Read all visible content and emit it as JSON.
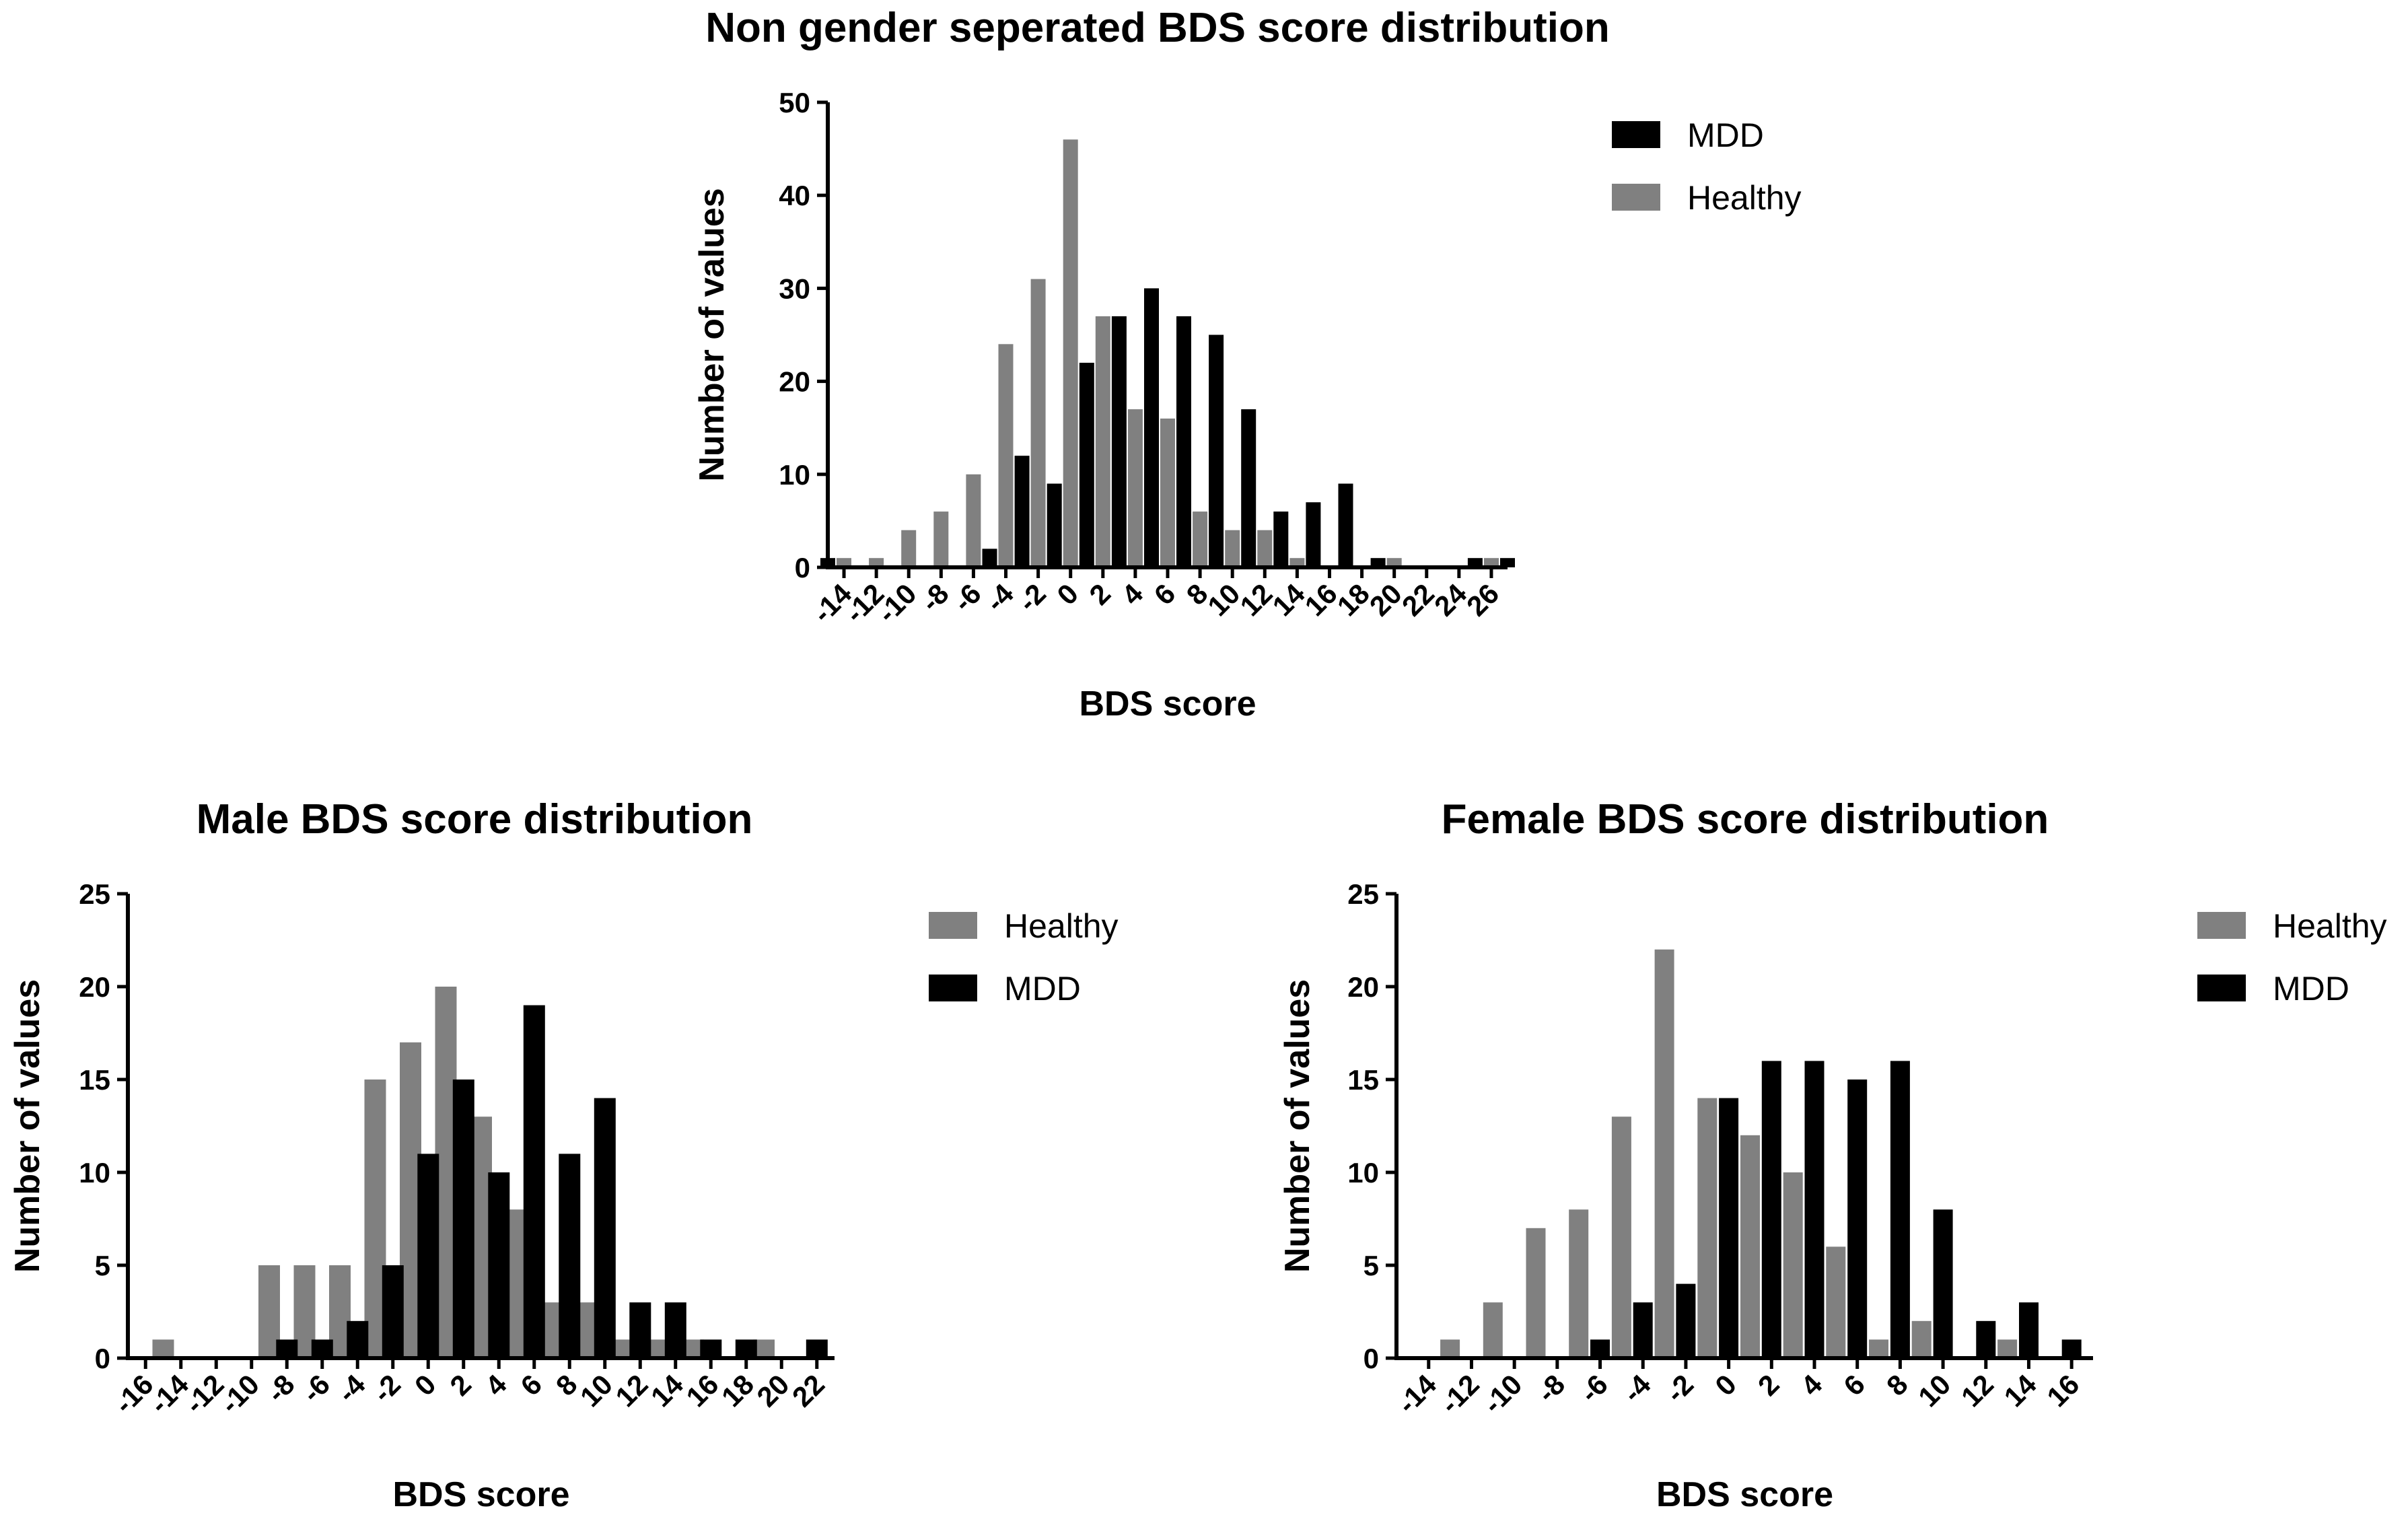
{
  "colors": {
    "mdd": "#000000",
    "healthy": "#808080",
    "axis": "#000000"
  },
  "chart_data": [
    {
      "type": "bar",
      "title": "Non gender seperated BDS score distribution",
      "xlabel": "BDS score",
      "ylabel": "Number of values",
      "ylim": [
        0,
        50
      ],
      "yticks": [
        0,
        10,
        20,
        30,
        40,
        50
      ],
      "xticks": [
        -14,
        -12,
        -10,
        -8,
        -6,
        -4,
        -2,
        0,
        2,
        4,
        6,
        8,
        10,
        12,
        14,
        16,
        18,
        20,
        22,
        24,
        26
      ],
      "legend_position": "top-right",
      "legend": [
        "MDD",
        "Healthy"
      ],
      "series": [
        {
          "name": "MDD",
          "x": [
            -15,
            -5,
            -3,
            -1,
            1,
            3,
            5,
            7,
            9,
            11,
            13,
            15,
            17,
            19,
            21,
            23,
            25,
            27
          ],
          "values": [
            1,
            2,
            12,
            9,
            22,
            27,
            30,
            27,
            25,
            17,
            6,
            7,
            9,
            1,
            0,
            0,
            1,
            1
          ]
        },
        {
          "name": "Healthy",
          "x": [
            -14,
            -12,
            -10,
            -8,
            -6,
            -4,
            -2,
            0,
            2,
            4,
            6,
            8,
            10,
            12,
            14,
            16,
            18,
            20,
            22,
            24,
            26
          ],
          "values": [
            1,
            1,
            4,
            6,
            10,
            24,
            31,
            46,
            27,
            17,
            16,
            6,
            4,
            4,
            1,
            0,
            0,
            1,
            0,
            0,
            1
          ]
        }
      ]
    },
    {
      "type": "bar",
      "title": "Male BDS score distribution",
      "xlabel": "BDS score",
      "ylabel": "Number of values",
      "ylim": [
        0,
        25
      ],
      "yticks": [
        0,
        5,
        10,
        15,
        20,
        25
      ],
      "xticks": [
        -16,
        -14,
        -12,
        -10,
        -8,
        -6,
        -4,
        -2,
        0,
        2,
        4,
        6,
        8,
        10,
        12,
        14,
        16,
        18,
        20,
        22
      ],
      "legend_position": "top-right",
      "legend": [
        "Healthy",
        "MDD"
      ],
      "series": [
        {
          "name": "Healthy",
          "x": [
            -15,
            -13,
            -11,
            -9,
            -7,
            -5,
            -3,
            -1,
            1,
            3,
            5,
            7,
            9,
            11,
            13,
            15,
            17,
            19,
            21
          ],
          "values": [
            1,
            0,
            0,
            5,
            5,
            5,
            15,
            17,
            20,
            13,
            8,
            3,
            3,
            1,
            1,
            1,
            0,
            1,
            0
          ]
        },
        {
          "name": "MDD",
          "x": [
            -8,
            -6,
            -4,
            -2,
            0,
            2,
            4,
            6,
            8,
            10,
            12,
            14,
            16,
            18,
            20,
            22
          ],
          "values": [
            1,
            1,
            2,
            5,
            11,
            15,
            10,
            19,
            11,
            14,
            3,
            3,
            1,
            1,
            0,
            1
          ]
        }
      ]
    },
    {
      "type": "bar",
      "title": "Female BDS score distribution",
      "xlabel": "BDS score",
      "ylabel": "Number of values",
      "ylim": [
        0,
        25
      ],
      "yticks": [
        0,
        5,
        10,
        15,
        20,
        25
      ],
      "xticks": [
        -14,
        -12,
        -10,
        -8,
        -6,
        -4,
        -2,
        0,
        2,
        4,
        6,
        8,
        10,
        12,
        14,
        16
      ],
      "legend_position": "top-right",
      "legend": [
        "Healthy",
        "MDD"
      ],
      "series": [
        {
          "name": "Healthy",
          "x": [
            -13,
            -11,
            -9,
            -7,
            -5,
            -3,
            -1,
            1,
            3,
            5,
            7,
            9,
            11,
            13
          ],
          "values": [
            1,
            3,
            7,
            8,
            13,
            22,
            14,
            12,
            10,
            6,
            1,
            2,
            0,
            1
          ]
        },
        {
          "name": "MDD",
          "x": [
            -6,
            -4,
            -2,
            0,
            2,
            4,
            6,
            8,
            10,
            12,
            14,
            16
          ],
          "values": [
            1,
            3,
            4,
            14,
            16,
            16,
            15,
            16,
            8,
            2,
            3,
            1
          ]
        }
      ]
    }
  ]
}
